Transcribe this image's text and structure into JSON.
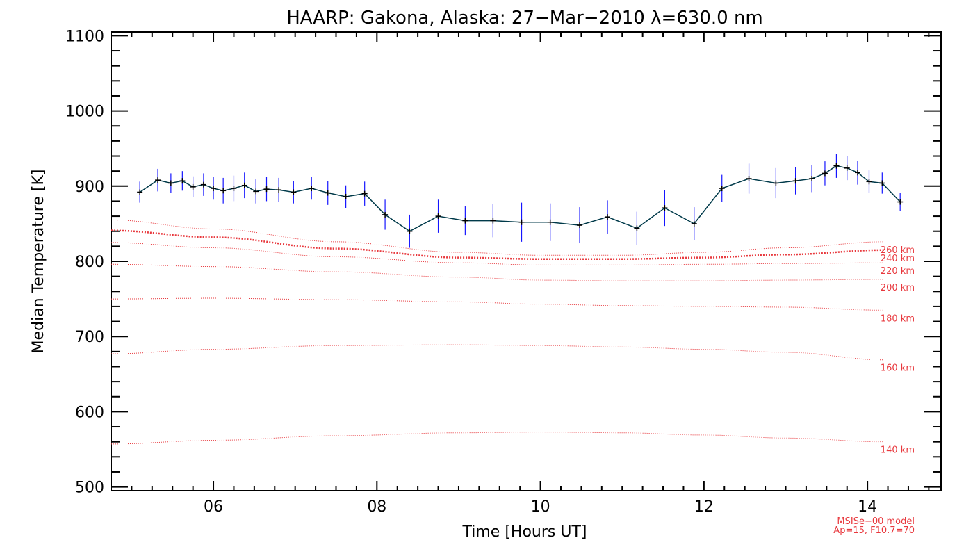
{
  "chart_data": {
    "type": "line",
    "title": "HAARP: Gakona,  Alaska: 27−Mar−2010 λ=630.0 nm",
    "xlabel": "Time [Hours UT]",
    "ylabel": "Median Temperature [K]",
    "xlim": [
      4.75,
      14.9
    ],
    "ylim": [
      495,
      1105
    ],
    "xticks": [
      6,
      8,
      10,
      12,
      14
    ],
    "xtick_labels": [
      "06",
      "08",
      "10",
      "12",
      "14"
    ],
    "yticks": [
      500,
      600,
      700,
      800,
      900,
      1000,
      1100
    ],
    "ytick_labels": [
      "500",
      "600",
      "700",
      "800",
      "900",
      "1000",
      "1100"
    ],
    "grid": false,
    "colors": {
      "measured_line": "#003a4a",
      "error_bar": "#1515ff",
      "marker": "#000000",
      "model": "#e8383d"
    },
    "measured": {
      "x": [
        5.1,
        5.32,
        5.48,
        5.62,
        5.75,
        5.88,
        6.0,
        6.12,
        6.25,
        6.38,
        6.52,
        6.65,
        6.8,
        6.98,
        7.2,
        7.4,
        7.62,
        7.85,
        8.1,
        8.4,
        8.75,
        9.08,
        9.42,
        9.77,
        10.12,
        10.48,
        10.82,
        11.18,
        11.52,
        11.88,
        12.22,
        12.55,
        12.88,
        13.12,
        13.32,
        13.48,
        13.62,
        13.75,
        13.88,
        14.02,
        14.18,
        14.4
      ],
      "y": [
        892,
        908,
        904,
        907,
        899,
        902,
        897,
        894,
        897,
        901,
        893,
        896,
        895,
        892,
        897,
        891,
        886,
        890,
        862,
        840,
        860,
        854,
        854,
        852,
        852,
        848,
        859,
        844,
        871,
        850,
        897,
        910,
        904,
        907,
        910,
        917,
        927,
        924,
        918,
        906,
        904,
        879
      ],
      "error": [
        14,
        15,
        13,
        13,
        14,
        15,
        15,
        17,
        17,
        17,
        16,
        16,
        16,
        15,
        15,
        16,
        15,
        16,
        20,
        22,
        22,
        19,
        22,
        26,
        25,
        24,
        22,
        22,
        24,
        22,
        18,
        20,
        20,
        18,
        18,
        16,
        16,
        16,
        16,
        15,
        14,
        12
      ]
    },
    "model_series": [
      {
        "name": "140 km",
        "x": [
          4.75,
          6.0,
          7.5,
          9.0,
          10.0,
          11.0,
          12.0,
          13.0,
          14.2
        ],
        "y": [
          557,
          562,
          568,
          572,
          573,
          572,
          569,
          565,
          560
        ]
      },
      {
        "name": "160 km",
        "x": [
          4.75,
          6.0,
          7.5,
          9.0,
          10.0,
          11.0,
          12.0,
          13.0,
          14.2
        ],
        "y": [
          677,
          683,
          688,
          689,
          688,
          686,
          683,
          679,
          669
        ]
      },
      {
        "name": "180 km",
        "x": [
          4.75,
          6.0,
          7.5,
          9.0,
          10.0,
          11.0,
          12.0,
          13.0,
          14.2
        ],
        "y": [
          750,
          751,
          749,
          746,
          743,
          741,
          740,
          739,
          735
        ]
      },
      {
        "name": "200 km",
        "x": [
          4.75,
          6.0,
          7.5,
          9.0,
          10.0,
          11.0,
          12.0,
          13.0,
          14.2
        ],
        "y": [
          796,
          793,
          786,
          779,
          775,
          774,
          774,
          775,
          776
        ]
      },
      {
        "name": "220 km",
        "x": [
          4.75,
          6.0,
          7.5,
          9.0,
          10.0,
          11.0,
          12.0,
          13.0,
          14.2
        ],
        "y": [
          825,
          818,
          806,
          798,
          795,
          795,
          796,
          797,
          798
        ]
      },
      {
        "name": "240 km",
        "x": [
          4.75,
          6.0,
          7.5,
          9.0,
          10.0,
          11.0,
          12.0,
          13.0,
          14.2
        ],
        "y": [
          841,
          832,
          817,
          805,
          803,
          803,
          805,
          809,
          815
        ]
      },
      {
        "name": "260 km",
        "x": [
          4.75,
          6.0,
          7.5,
          9.0,
          10.0,
          11.0,
          12.0,
          13.0,
          14.2
        ],
        "y": [
          855,
          843,
          826,
          812,
          808,
          808,
          812,
          818,
          826
        ]
      }
    ],
    "model_label_note": "MSISe−00 model",
    "model_param_note": "Ap=15, F10.7=70"
  }
}
